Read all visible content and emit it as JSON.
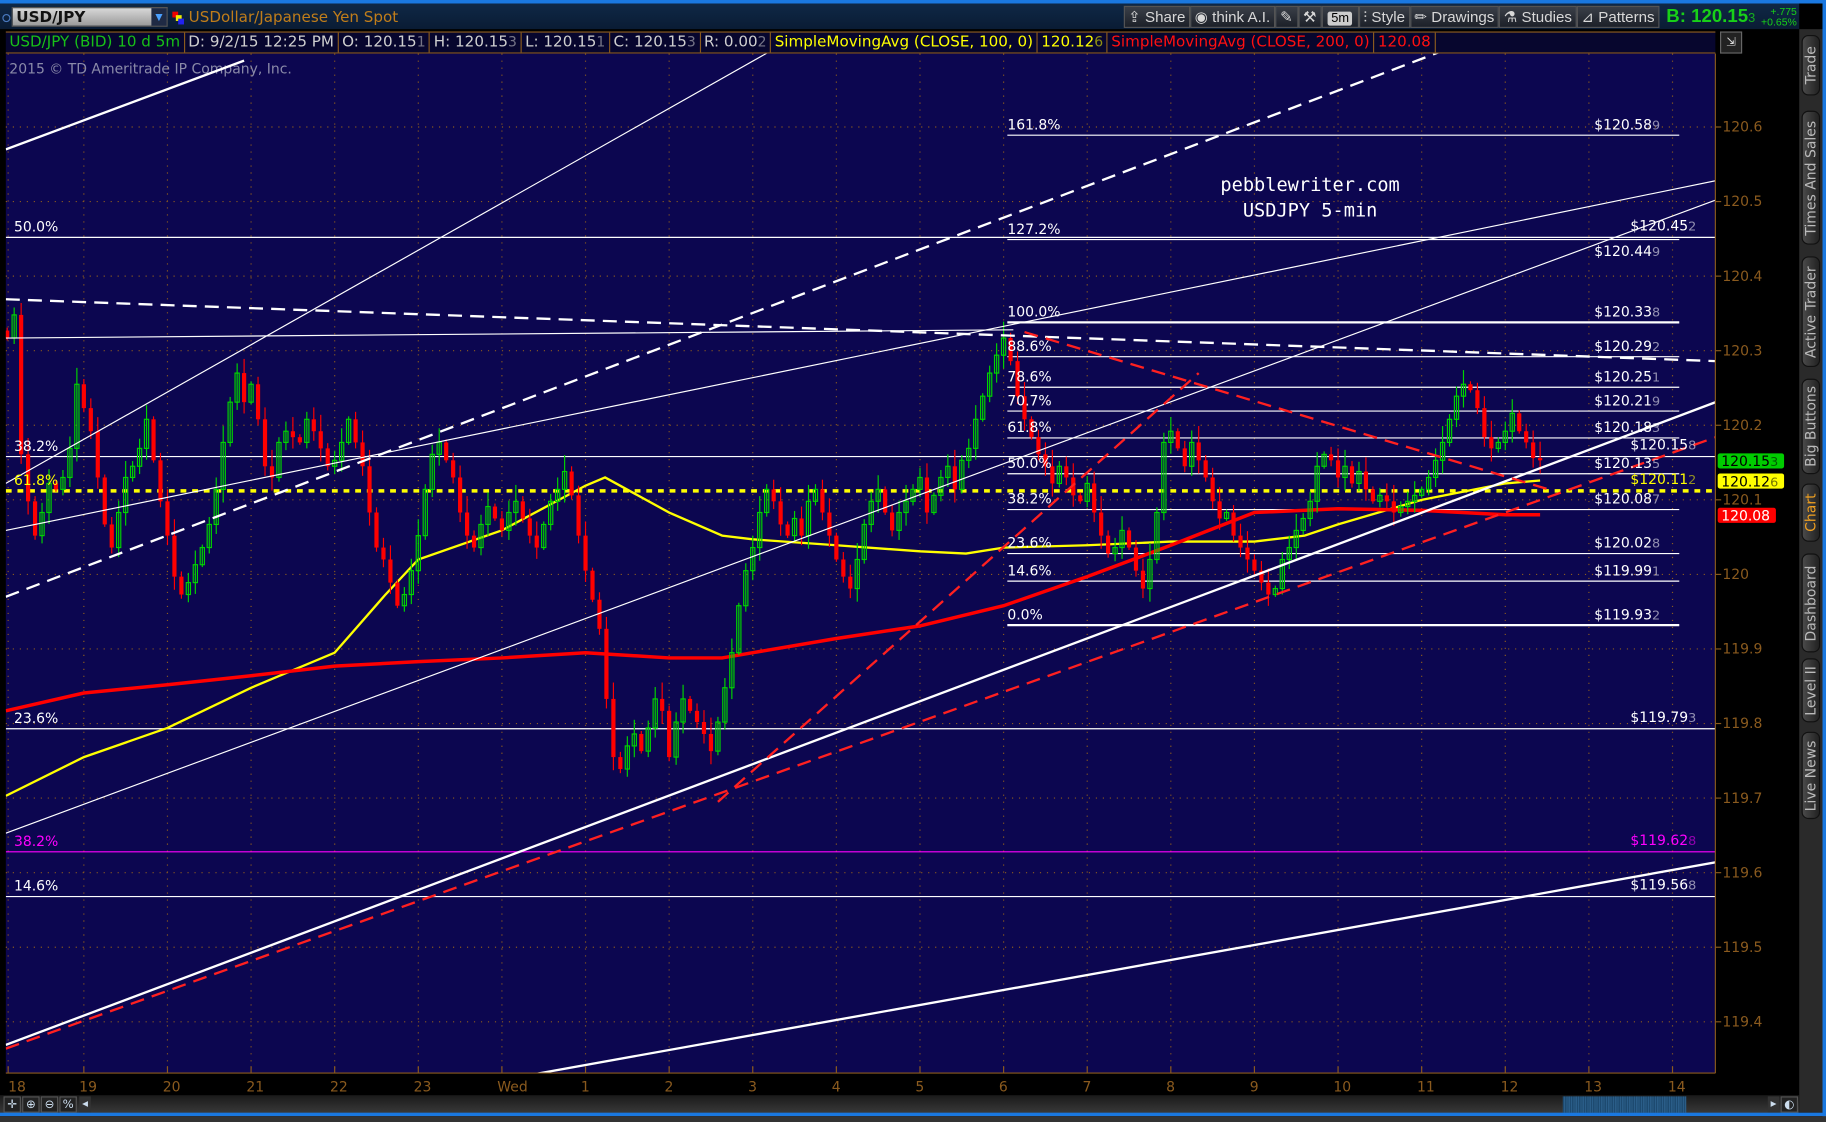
{
  "header": {
    "symbol": "USD/JPY",
    "description": "USDollar/Japanese Yen Spot",
    "toolbar": [
      "Share",
      "think A.I.",
      "5m",
      "Style",
      "Drawings",
      "Studies",
      "Patterns"
    ],
    "bid_label": "B: 120.15",
    "bid_last_digit": "3",
    "change": "+.775",
    "change_pct": "+0.65%"
  },
  "info_bar": {
    "title": "USD/JPY (BID) 10 d 5m",
    "date": "D: 9/2/15 12:25 PM",
    "open": "O: 120.15",
    "open_digit": "1",
    "high": "H: 120.15",
    "high_digit": "3",
    "low": "L: 120.15",
    "low_digit": "1",
    "close": "C: 120.15",
    "close_digit": "3",
    "range": "R: 0.00",
    "range_digit": "2",
    "sma100_label": "SimpleMovingAvg (CLOSE, 100, 0)",
    "sma100_value": "120.12",
    "sma100_digit": "6",
    "sma200_label": "SimpleMovingAvg (CLOSE, 200, 0)",
    "sma200_value": "120.08"
  },
  "copyright": "2015 © TD Ameritrade IP Company, Inc.",
  "watermark": [
    "pebblewriter.com",
    "USDJPY 5-min"
  ],
  "side_tabs": [
    "Trade",
    "Times And Sales",
    "Active Trader",
    "Big Buttons",
    "Chart",
    "Dashboard",
    "Level II",
    "Live News"
  ],
  "active_side_tab": "Chart",
  "colors": {
    "background": "#0c0650",
    "up": "#00d400",
    "down": "#ff0000",
    "sma100": "#ffff00",
    "sma200": "#ff0000",
    "axis": "#8a5a1e",
    "fib": "#ffffff",
    "fib_magenta": "#ff00ff"
  },
  "chart_data": {
    "type": "candlestick",
    "symbol": "USD/JPY",
    "interval": "5m",
    "start": "18:05",
    "interval_minutes": 5,
    "close": [
      120.317,
      120.348,
      120.161,
      120.098,
      120.052,
      120.083,
      120.122,
      120.114,
      120.13,
      120.169,
      120.255,
      120.223,
      120.192,
      120.13,
      120.067,
      120.036,
      120.083,
      120.13,
      120.145,
      120.169,
      120.208,
      120.153,
      120.098,
      120.052,
      119.997,
      119.973,
      119.989,
      120.013,
      120.036,
      120.067,
      120.114,
      120.177,
      120.231,
      120.27,
      120.231,
      120.255,
      120.208,
      120.145,
      120.13,
      120.177,
      120.192,
      120.184,
      120.177,
      120.208,
      120.192,
      120.169,
      120.145,
      120.153,
      120.177,
      120.208,
      120.177,
      120.145,
      120.083,
      120.036,
      120.02,
      119.989,
      119.958,
      119.973,
      120.005,
      120.052,
      120.114,
      120.161,
      120.177,
      120.153,
      120.13,
      120.083,
      120.052,
      120.036,
      120.067,
      120.091,
      120.075,
      120.059,
      120.083,
      120.098,
      120.075,
      120.052,
      120.036,
      120.067,
      120.098,
      120.114,
      120.138,
      120.106,
      120.052,
      120.005,
      119.966,
      119.927,
      119.833,
      119.755,
      119.739,
      119.77,
      119.786,
      119.763,
      119.794,
      119.833,
      119.817,
      119.755,
      119.802,
      119.833,
      119.817,
      119.802,
      119.786,
      119.763,
      119.802,
      119.848,
      119.895,
      119.958,
      120.005,
      120.036,
      120.083,
      120.114,
      120.098,
      120.067,
      120.052,
      120.075,
      120.052,
      120.098,
      120.114,
      120.083,
      120.052,
      120.02,
      119.997,
      119.981,
      120.02,
      120.067,
      120.098,
      120.114,
      120.083,
      120.059,
      120.083,
      120.098,
      120.114,
      120.13,
      120.083,
      120.106,
      120.13,
      120.145,
      120.114,
      120.153,
      120.169,
      120.208,
      120.239,
      120.27,
      120.294,
      120.317,
      120.286,
      120.239,
      120.208,
      120.184,
      120.161,
      120.145,
      120.122,
      120.145,
      120.13,
      120.106,
      120.098,
      120.122,
      120.083,
      120.052,
      120.028,
      120.036,
      120.059,
      120.036,
      120.005,
      119.981,
      120.02,
      120.083,
      120.177,
      120.192,
      120.169,
      120.145,
      120.177,
      120.153,
      120.13,
      120.098,
      120.075,
      120.083,
      120.052,
      120.036,
      120.02,
      120.005,
      119.989,
      119.973,
      119.981,
      120.02,
      120.036,
      120.059,
      120.075,
      120.098,
      120.145,
      120.161,
      120.153,
      120.13,
      120.145,
      120.122,
      120.138,
      120.114,
      120.098,
      120.106,
      120.098,
      120.083,
      120.091,
      120.098,
      120.106,
      120.114,
      120.13,
      120.153,
      120.177,
      120.208,
      120.239,
      120.255,
      120.247,
      120.223,
      120.184,
      120.169,
      120.177,
      120.192,
      120.216,
      120.192,
      120.177,
      120.156,
      120.153
    ],
    "studies": [
      {
        "name": "SimpleMovingAvg (CLOSE, 100, 0)",
        "color": "#ffff00",
        "points": [
          [
            "18:04",
            119.703
          ],
          [
            "19:00",
            119.755
          ],
          [
            "20:00",
            119.794
          ],
          [
            "21:00",
            119.848
          ],
          [
            "22:00",
            119.895
          ],
          [
            "22:36",
            119.972
          ],
          [
            "23:00",
            120.02
          ],
          [
            "00:00",
            120.059
          ],
          [
            "01:00",
            120.119
          ],
          [
            "01:14",
            120.13
          ],
          [
            "02:00",
            120.083
          ],
          [
            "02:38",
            120.052
          ],
          [
            "03:00",
            120.047
          ],
          [
            "04:00",
            120.039
          ],
          [
            "05:00",
            120.031
          ],
          [
            "05:33",
            120.028
          ],
          [
            "06:00",
            120.036
          ],
          [
            "07:00",
            120.039
          ],
          [
            "08:00",
            120.044
          ],
          [
            "09:00",
            120.044
          ],
          [
            "09:36",
            120.052
          ],
          [
            "10:00",
            120.067
          ],
          [
            "11:00",
            120.1
          ],
          [
            "12:00",
            120.122
          ],
          [
            "12:25",
            120.126
          ]
        ]
      },
      {
        "name": "SimpleMovingAvg (CLOSE, 200, 0)",
        "color": "#ff0000",
        "points": [
          [
            "18:04",
            119.817
          ],
          [
            "19:00",
            119.841
          ],
          [
            "20:00",
            119.852
          ],
          [
            "21:00",
            119.864
          ],
          [
            "22:00",
            119.877
          ],
          [
            "23:00",
            119.883
          ],
          [
            "00:00",
            119.888
          ],
          [
            "01:00",
            119.895
          ],
          [
            "02:00",
            119.888
          ],
          [
            "02:38",
            119.888
          ],
          [
            "03:00",
            119.895
          ],
          [
            "04:00",
            119.914
          ],
          [
            "05:00",
            119.931
          ],
          [
            "06:00",
            119.958
          ],
          [
            "07:00",
            119.997
          ],
          [
            "08:00",
            120.039
          ],
          [
            "09:00",
            120.083
          ],
          [
            "10:00",
            120.088
          ],
          [
            "11:00",
            120.086
          ],
          [
            "12:00",
            120.08
          ],
          [
            "12:25",
            120.08
          ]
        ]
      }
    ],
    "x_ticks": [
      "18",
      "19",
      "20",
      "21",
      "22",
      "23",
      "Wed",
      "1",
      "2",
      "3",
      "4",
      "5",
      "6",
      "7",
      "8",
      "9",
      "10",
      "11",
      "12",
      "13",
      "14"
    ],
    "y_ticks": [
      "120.6",
      "120.5",
      "120.4",
      "120.3",
      "120.2",
      "120.1",
      "120",
      "119.9",
      "119.8",
      "119.7",
      "119.6",
      "119.5",
      "119.4"
    ],
    "ylim": [
      119.33,
      120.7
    ],
    "grid": true,
    "price_markers": [
      {
        "label": "120.15",
        "digit": "3",
        "value": 120.153,
        "bg": "#00cc00",
        "fg": "#000"
      },
      {
        "label": "120.12",
        "digit": "6",
        "value": 120.126,
        "bg": "#ffff00",
        "fg": "#000"
      },
      {
        "label": "120.08",
        "digit": "",
        "value": 120.08,
        "bg": "#ff0000",
        "fg": "#fff"
      }
    ],
    "fib_left": [
      {
        "pct": "50.0%",
        "price": "$120.45",
        "digit": "2",
        "value": 120.452,
        "color": "#ffffff",
        "style": "solid"
      },
      {
        "pct": "38.2%",
        "price": "$120.15",
        "digit": "8",
        "value": 120.158,
        "color": "#ffffff",
        "style": "solid"
      },
      {
        "pct": "61.8%",
        "price": "$120.11",
        "digit": "2",
        "value": 120.112,
        "color": "#ffff00",
        "style": "dotted"
      },
      {
        "pct": "23.6%",
        "price": "$119.79",
        "digit": "3",
        "value": 119.793,
        "color": "#ffffff",
        "style": "solid"
      },
      {
        "pct": "38.2%",
        "price": "$119.62",
        "digit": "8",
        "value": 119.628,
        "color": "#ff00ff",
        "style": "solid"
      },
      {
        "pct": "14.6%",
        "price": "$119.56",
        "digit": "8",
        "value": 119.568,
        "color": "#ffffff",
        "style": "solid"
      }
    ],
    "fib_right": [
      {
        "pct": "161.8%",
        "price": "$120.58",
        "digit": "9",
        "value": 120.589
      },
      {
        "pct": "127.2%",
        "price": "$120.44",
        "digit": "9",
        "value": 120.449
      },
      {
        "pct": "100.0%",
        "price": "$120.33",
        "digit": "8",
        "value": 120.338
      },
      {
        "pct": "88.6%",
        "price": "$120.29",
        "digit": "2",
        "value": 120.292
      },
      {
        "pct": "78.6%",
        "price": "$120.25",
        "digit": "1",
        "value": 120.251
      },
      {
        "pct": "70.7%",
        "price": "$120.21",
        "digit": "9",
        "value": 120.219
      },
      {
        "pct": "61.8%",
        "price": "$120.18",
        "digit": "3",
        "value": 120.183
      },
      {
        "pct": "50.0%",
        "price": "$120.13",
        "digit": "5",
        "value": 120.135
      },
      {
        "pct": "38.2%",
        "price": "$120.08",
        "digit": "7",
        "value": 120.087
      },
      {
        "pct": "23.6%",
        "price": "$120.02",
        "digit": "8",
        "value": 120.028
      },
      {
        "pct": "14.6%",
        "price": "$119.99",
        "digit": "1",
        "value": 119.991
      },
      {
        "pct": "0.0%",
        "price": "$119.93",
        "digit": "2",
        "value": 119.932
      }
    ],
    "trendlines": [
      {
        "from": [
          "18:04",
          120.57
        ],
        "to": [
          "20:55",
          120.689
        ],
        "color": "#ffffff",
        "style": "solid",
        "weight": "thick"
      },
      {
        "from": [
          "18:04",
          120.122
        ],
        "to": [
          "03:11",
          120.7
        ],
        "color": "#ffffff",
        "style": "solid",
        "weight": "thin"
      },
      {
        "from": [
          "18:04",
          119.97
        ],
        "to": [
          "11:12",
          120.7
        ],
        "color": "#ffffff",
        "style": "dashed",
        "weight": "thick"
      },
      {
        "from": [
          "18:04",
          120.317
        ],
        "to": [
          "06:07",
          120.328
        ],
        "color": "#ffffff",
        "style": "solid",
        "weight": "thin"
      },
      {
        "from": [
          "18:04",
          120.059
        ],
        "to": [
          "14:31",
          120.528
        ],
        "color": "#ffffff",
        "style": "solid",
        "weight": "thin"
      },
      {
        "from": [
          "18:04",
          119.653
        ],
        "to": [
          "14:31",
          120.502
        ],
        "color": "#ffffff",
        "style": "solid",
        "weight": "thin"
      },
      {
        "from": [
          "18:04",
          120.369
        ],
        "to": [
          "14:31",
          120.286
        ],
        "color": "#ffffff",
        "style": "dashed",
        "weight": "thick"
      },
      {
        "from": [
          "18:04",
          119.369
        ],
        "to": [
          "14:31",
          120.231
        ],
        "color": "#ffffff",
        "style": "solid",
        "weight": "thick"
      },
      {
        "from": [
          "18:04",
          119.364
        ],
        "to": [
          "14:31",
          120.184
        ],
        "color": "#ff2020",
        "style": "dashed",
        "weight": "thick"
      },
      {
        "from": [
          "00:24",
          119.33
        ],
        "to": [
          "14:31",
          119.614
        ],
        "color": "#ffffff",
        "style": "solid",
        "weight": "thick"
      },
      {
        "from": [
          "02:35",
          119.695
        ],
        "to": [
          "08:20",
          120.27
        ],
        "color": "#ff2020",
        "style": "dashed",
        "weight": "thick"
      },
      {
        "from": [
          "06:15",
          120.325
        ],
        "to": [
          "12:31",
          120.114
        ],
        "color": "#ff2020",
        "style": "dashed",
        "weight": "thick"
      }
    ]
  }
}
